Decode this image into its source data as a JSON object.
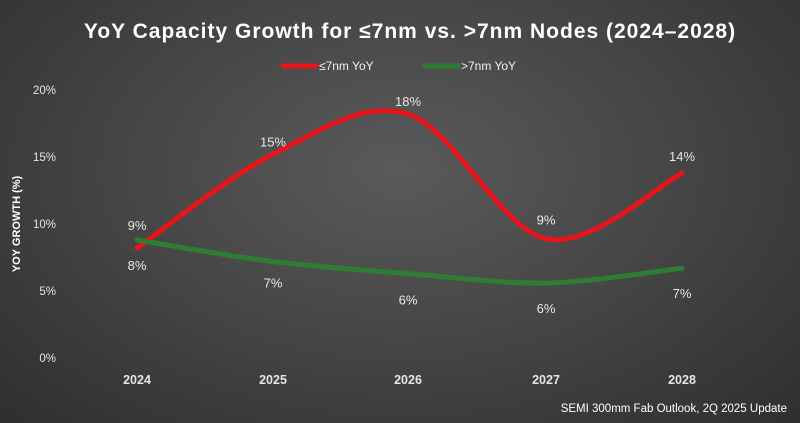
{
  "chart_data": {
    "type": "line",
    "title": "YoY Capacity Growth for ≤7nm vs. >7nm Nodes (2024–2028)",
    "ylabel": "YOY GROWTH (%)",
    "xlabel": "",
    "categories": [
      "2024",
      "2025",
      "2026",
      "2027",
      "2028"
    ],
    "ylim": [
      0,
      20
    ],
    "yticks": [
      0,
      5,
      10,
      15,
      20
    ],
    "ytick_labels": [
      "0%",
      "5%",
      "10%",
      "15%",
      "20%"
    ],
    "grid": false,
    "smooth": true,
    "legend_position": "top-center",
    "series": [
      {
        "name": "≤7nm YoY",
        "color": "#e8141b",
        "values": [
          8.2,
          15.2,
          18.2,
          8.9,
          13.8
        ],
        "labels": [
          "8%",
          "15%",
          "18%",
          "9%",
          "14%"
        ]
      },
      {
        "name": ">7nm YoY",
        "color": "#2e7d32",
        "values": [
          8.8,
          7.2,
          6.3,
          5.6,
          6.7
        ],
        "labels": [
          "9%",
          "7%",
          "6%",
          "6%",
          "7%"
        ]
      }
    ],
    "source": "SEMI 300mm Fab Outlook, 2Q 2025 Update"
  }
}
